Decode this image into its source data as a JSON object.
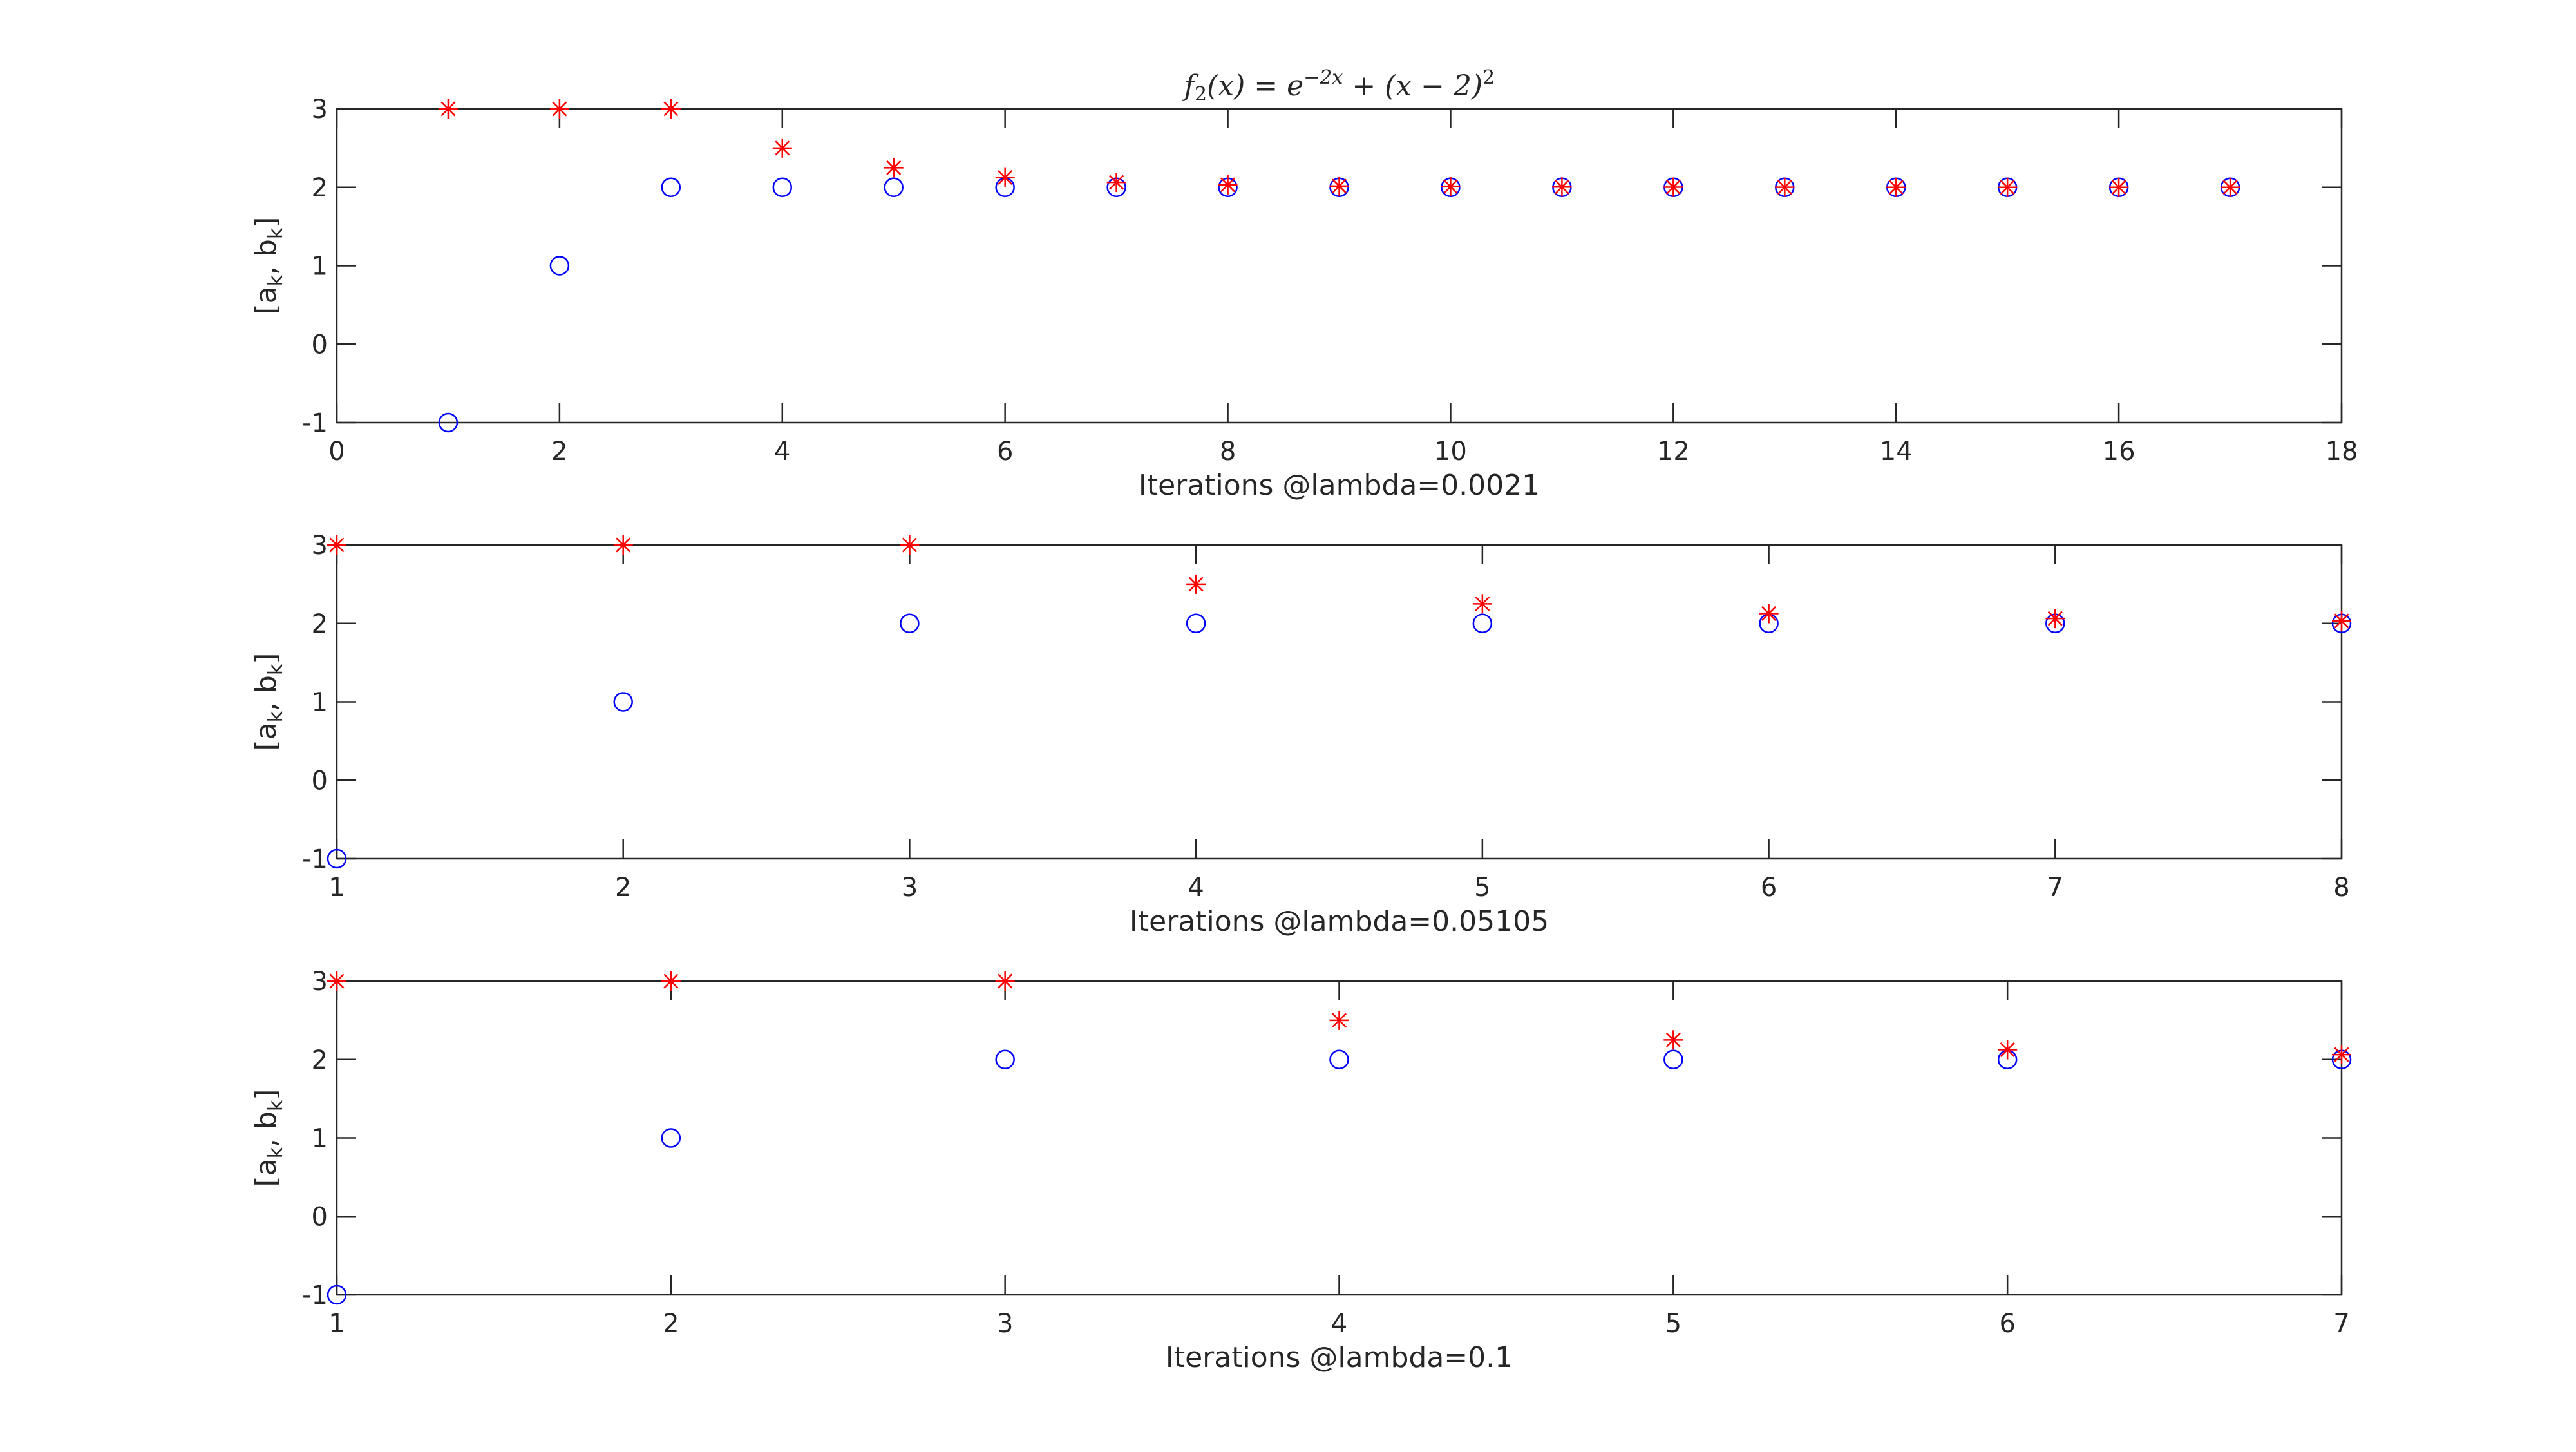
{
  "chart_data": [
    {
      "type": "scatter",
      "title": "f_2(x) = e^{-2x} + (x-2)^2",
      "title_parts": {
        "f": "f",
        "sub": "2",
        "lhs": "(x) = e",
        "exp1": "−2x",
        "rhs": " + (x − 2)",
        "exp2": "2"
      },
      "xlabel": "Iterations @lambda=0.0021",
      "ylabel": "[a_k, b_k]",
      "xlim": [
        0,
        18
      ],
      "ylim": [
        -1,
        3
      ],
      "xticks": [
        0,
        2,
        4,
        6,
        8,
        10,
        12,
        14,
        16,
        18
      ],
      "yticks": [
        -1,
        0,
        1,
        2,
        3
      ],
      "grid": false,
      "series": [
        {
          "marker": "circle",
          "color": "#0000ff",
          "x": [
            1,
            2,
            3,
            4,
            5,
            6,
            7,
            8,
            9,
            10,
            11,
            12,
            13,
            14,
            15,
            16,
            17
          ],
          "y": [
            -1,
            1,
            2,
            2,
            2,
            2,
            2,
            2,
            2,
            2,
            2,
            2,
            2,
            2,
            2,
            2,
            2
          ]
        },
        {
          "marker": "asterisk",
          "color": "#ff0000",
          "x": [
            1,
            2,
            3,
            4,
            5,
            6,
            7,
            8,
            9,
            10,
            11,
            12,
            13,
            14,
            15,
            16,
            17
          ],
          "y": [
            3,
            3,
            3,
            2.5,
            2.25,
            2.125,
            2.0625,
            2.03125,
            2.0156,
            2.0078,
            2.0039,
            2.002,
            2.001,
            2.0005,
            2.0002,
            2.0001,
            2.0001
          ]
        }
      ]
    },
    {
      "type": "scatter",
      "xlabel": "Iterations @lambda=0.05105",
      "ylabel": "[a_k, b_k]",
      "xlim": [
        1,
        8
      ],
      "ylim": [
        -1,
        3
      ],
      "xticks": [
        1,
        2,
        3,
        4,
        5,
        6,
        7,
        8
      ],
      "yticks": [
        -1,
        0,
        1,
        2,
        3
      ],
      "grid": false,
      "series": [
        {
          "marker": "circle",
          "color": "#0000ff",
          "x": [
            1,
            2,
            3,
            4,
            5,
            6,
            7,
            8
          ],
          "y": [
            -1,
            1,
            2,
            2,
            2,
            2,
            2,
            2
          ]
        },
        {
          "marker": "asterisk",
          "color": "#ff0000",
          "x": [
            1,
            2,
            3,
            4,
            5,
            6,
            7,
            8
          ],
          "y": [
            3,
            3,
            3,
            2.5,
            2.25,
            2.125,
            2.0625,
            2.03125
          ]
        }
      ]
    },
    {
      "type": "scatter",
      "xlabel": "Iterations @lambda=0.1",
      "ylabel": "[a_k, b_k]",
      "xlim": [
        1,
        7
      ],
      "ylim": [
        -1,
        3
      ],
      "xticks": [
        1,
        2,
        3,
        4,
        5,
        6,
        7
      ],
      "yticks": [
        -1,
        0,
        1,
        2,
        3
      ],
      "grid": false,
      "series": [
        {
          "marker": "circle",
          "color": "#0000ff",
          "x": [
            1,
            2,
            3,
            4,
            5,
            6,
            7
          ],
          "y": [
            -1,
            1,
            2,
            2,
            2,
            2,
            2
          ]
        },
        {
          "marker": "asterisk",
          "color": "#ff0000",
          "x": [
            1,
            2,
            3,
            4,
            5,
            6,
            7
          ],
          "y": [
            3,
            3,
            3,
            2.5,
            2.25,
            2.125,
            2.0625
          ]
        }
      ]
    }
  ]
}
